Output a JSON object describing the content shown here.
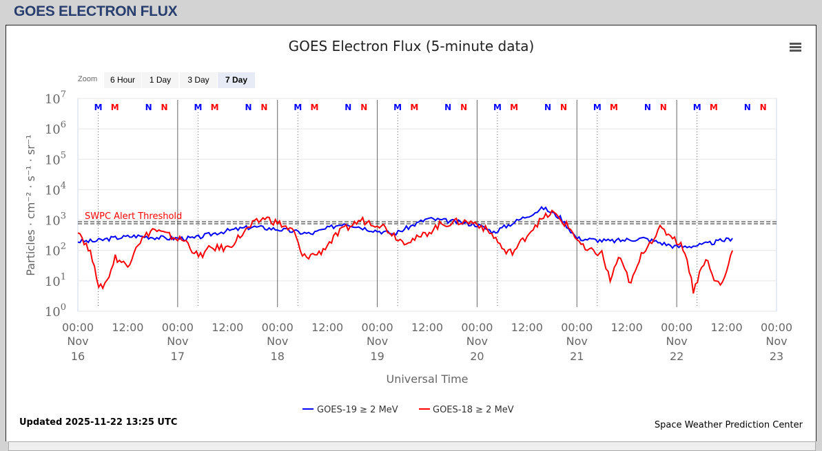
{
  "header": {
    "title": "GOES ELECTRON FLUX"
  },
  "zoom": {
    "label": "Zoom",
    "buttons": [
      "6 Hour",
      "1 Day",
      "3 Day",
      "7 Day"
    ],
    "selected": "7 Day"
  },
  "menu_icon": "hamburger-menu-icon",
  "footer": {
    "updated": "Updated 2025-11-22 13:25 UTC",
    "credit": "Space Weather Prediction Center"
  },
  "colors": {
    "goes19": "#0000ff",
    "goes18": "#ff0000",
    "threshold": "#222222",
    "title_header": "#283e6e"
  },
  "chart_data": {
    "type": "line",
    "title": "GOES Electron Flux (5-minute data)",
    "xlabel": "Universal Time",
    "ylabel": "Particles · cm⁻² · s⁻¹ · sr⁻¹",
    "yscale": "log",
    "ylim": [
      1,
      10000000
    ],
    "xlim": [
      "2025-11-16T00:00Z",
      "2025-11-23T00:00Z"
    ],
    "grid": true,
    "legend": "bottom-center",
    "y_ticks": [
      {
        "base": "10",
        "exp": "0"
      },
      {
        "base": "10",
        "exp": "1"
      },
      {
        "base": "10",
        "exp": "2"
      },
      {
        "base": "10",
        "exp": "3"
      },
      {
        "base": "10",
        "exp": "4"
      },
      {
        "base": "10",
        "exp": "5"
      },
      {
        "base": "10",
        "exp": "6"
      },
      {
        "base": "10",
        "exp": "7"
      }
    ],
    "x_ticks": [
      {
        "time": "00:00",
        "mon": "Nov",
        "day": "16"
      },
      {
        "time": "12:00"
      },
      {
        "time": "00:00",
        "mon": "Nov",
        "day": "17"
      },
      {
        "time": "12:00"
      },
      {
        "time": "00:00",
        "mon": "Nov",
        "day": "18"
      },
      {
        "time": "12:00"
      },
      {
        "time": "00:00",
        "mon": "Nov",
        "day": "19"
      },
      {
        "time": "12:00"
      },
      {
        "time": "00:00",
        "mon": "Nov",
        "day": "20"
      },
      {
        "time": "12:00"
      },
      {
        "time": "00:00",
        "mon": "Nov",
        "day": "21"
      },
      {
        "time": "12:00"
      },
      {
        "time": "00:00",
        "mon": "Nov",
        "day": "22"
      },
      {
        "time": "12:00"
      },
      {
        "time": "00:00",
        "mon": "Nov",
        "day": "23"
      }
    ],
    "threshold": {
      "label": "SWPC Alert Threshold",
      "value": 1000
    },
    "markers": [
      {
        "label": "M",
        "series": "GOES-19",
        "offset_hours": 4.9
      },
      {
        "label": "M",
        "series": "GOES-18",
        "offset_hours": 8.9
      },
      {
        "label": "N",
        "series": "GOES-19",
        "offset_hours": 17.0
      },
      {
        "label": "N",
        "series": "GOES-18",
        "offset_hours": 20.8
      }
    ],
    "series": [
      {
        "name": "GOES-19 ≥ 2 MeV",
        "color": "#0000ff",
        "points": [
          [
            "2025-11-16T00:00Z",
            200
          ],
          [
            "2025-11-16T04:00Z",
            200
          ],
          [
            "2025-11-16T08:00Z",
            250
          ],
          [
            "2025-11-16T14:00Z",
            300
          ],
          [
            "2025-11-16T22:00Z",
            250
          ],
          [
            "2025-11-17T04:00Z",
            250
          ],
          [
            "2025-11-17T10:00Z",
            400
          ],
          [
            "2025-11-17T18:00Z",
            600
          ],
          [
            "2025-11-18T00:00Z",
            500
          ],
          [
            "2025-11-18T08:00Z",
            350
          ],
          [
            "2025-11-18T16:00Z",
            800
          ],
          [
            "2025-11-18T22:00Z",
            500
          ],
          [
            "2025-11-19T04:00Z",
            350
          ],
          [
            "2025-11-19T12:00Z",
            1100
          ],
          [
            "2025-11-19T18:00Z",
            900
          ],
          [
            "2025-11-20T00:00Z",
            700
          ],
          [
            "2025-11-20T04:00Z",
            400
          ],
          [
            "2025-11-20T10:00Z",
            1000
          ],
          [
            "2025-11-20T16:00Z",
            2500
          ],
          [
            "2025-11-20T20:00Z",
            1200
          ],
          [
            "2025-11-21T00:00Z",
            250
          ],
          [
            "2025-11-21T08:00Z",
            200
          ],
          [
            "2025-11-21T16:00Z",
            250
          ],
          [
            "2025-11-22T00:00Z",
            130
          ],
          [
            "2025-11-22T06:00Z",
            150
          ],
          [
            "2025-11-22T13:25Z",
            250
          ]
        ]
      },
      {
        "name": "GOES-18 ≥ 2 MeV",
        "color": "#ff0000",
        "points": [
          [
            "2025-11-16T00:00Z",
            500
          ],
          [
            "2025-11-16T02:00Z",
            150
          ],
          [
            "2025-11-16T04:00Z",
            40
          ],
          [
            "2025-11-16T05:00Z",
            5
          ],
          [
            "2025-11-16T07:00Z",
            10
          ],
          [
            "2025-11-16T09:00Z",
            60
          ],
          [
            "2025-11-16T12:00Z",
            30
          ],
          [
            "2025-11-16T14:00Z",
            150
          ],
          [
            "2025-11-16T18:00Z",
            500
          ],
          [
            "2025-11-16T22:00Z",
            300
          ],
          [
            "2025-11-17T02:00Z",
            200
          ],
          [
            "2025-11-17T05:00Z",
            60
          ],
          [
            "2025-11-17T08:00Z",
            120
          ],
          [
            "2025-11-17T12:00Z",
            120
          ],
          [
            "2025-11-17T16:00Z",
            400
          ],
          [
            "2025-11-17T18:00Z",
            700
          ],
          [
            "2025-11-17T21:00Z",
            1200
          ],
          [
            "2025-11-18T01:00Z",
            700
          ],
          [
            "2025-11-18T04:00Z",
            400
          ],
          [
            "2025-11-18T06:00Z",
            60
          ],
          [
            "2025-11-18T10:00Z",
            80
          ],
          [
            "2025-11-18T15:00Z",
            400
          ],
          [
            "2025-11-18T20:00Z",
            1000
          ],
          [
            "2025-11-19T01:00Z",
            700
          ],
          [
            "2025-11-19T06:00Z",
            200
          ],
          [
            "2025-11-19T10:00Z",
            250
          ],
          [
            "2025-11-19T15:00Z",
            700
          ],
          [
            "2025-11-19T20:00Z",
            900
          ],
          [
            "2025-11-20T00:00Z",
            800
          ],
          [
            "2025-11-20T04:00Z",
            300
          ],
          [
            "2025-11-20T07:00Z",
            80
          ],
          [
            "2025-11-20T09:00Z",
            100
          ],
          [
            "2025-11-20T14:00Z",
            700
          ],
          [
            "2025-11-20T18:00Z",
            1800
          ],
          [
            "2025-11-20T22:00Z",
            600
          ],
          [
            "2025-11-21T02:00Z",
            100
          ],
          [
            "2025-11-21T06:00Z",
            80
          ],
          [
            "2025-11-21T08:00Z",
            10
          ],
          [
            "2025-11-21T10:00Z",
            60
          ],
          [
            "2025-11-21T13:00Z",
            8
          ],
          [
            "2025-11-21T16:00Z",
            100
          ],
          [
            "2025-11-21T20:00Z",
            500
          ],
          [
            "2025-11-21T23:00Z",
            300
          ],
          [
            "2025-11-22T02:00Z",
            100
          ],
          [
            "2025-11-22T04:00Z",
            5
          ],
          [
            "2025-11-22T07:00Z",
            60
          ],
          [
            "2025-11-22T09:00Z",
            10
          ],
          [
            "2025-11-22T11:00Z",
            8
          ],
          [
            "2025-11-22T13:25Z",
            100
          ]
        ]
      }
    ]
  }
}
